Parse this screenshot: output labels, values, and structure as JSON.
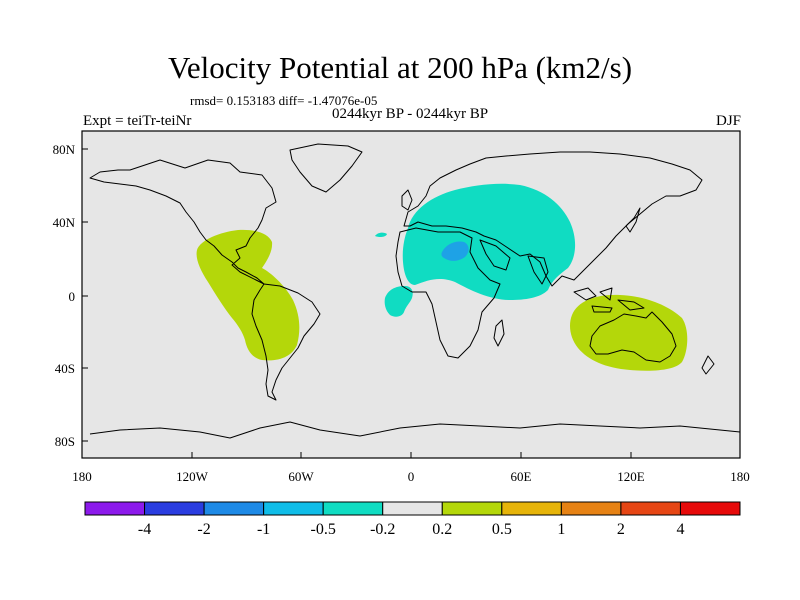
{
  "title": "Velocity Potential at 200 hPa (km2/s)",
  "stats": "rmsd= 0.153183 diff= -1.47076e-05",
  "experiment": "Expt = teiTr-teiNr",
  "period": "0244kyr BP - 0244kyr BP",
  "season": "DJF",
  "lon_ticks": [
    "180",
    "120W",
    "60W",
    "0",
    "60E",
    "120E",
    "180"
  ],
  "lat_ticks": [
    "80N",
    "40N",
    "0",
    "40S",
    "80S"
  ],
  "colorbar": {
    "colors": [
      "#8c1aeb",
      "#2a3de0",
      "#1e8ae6",
      "#10bde8",
      "#10dcc2",
      "#e6e6e6",
      "#b4d70a",
      "#e6b40a",
      "#e68214",
      "#e64614",
      "#e60a0a"
    ],
    "labels": [
      "-4",
      "-2",
      "-1",
      "-0.5",
      "-0.2",
      "0.2",
      "0.5",
      "1",
      "2",
      "4"
    ]
  },
  "colors": {
    "ocean_background": "#e6e6e6",
    "positive_anomaly": "#b4d70a",
    "negative_anomaly": "#10dcc2",
    "negative_core": "#1ea2e6"
  }
}
